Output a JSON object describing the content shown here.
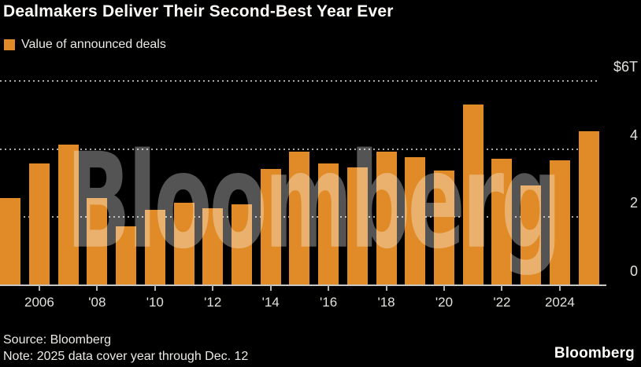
{
  "header": {
    "title": "Dealmakers Deliver Their Second-Best Year Ever"
  },
  "legend": {
    "label": "Value of announced deals",
    "swatch_color": "#e08b28",
    "swatch_icon": "square-swatch-icon"
  },
  "chart_data": {
    "type": "bar",
    "title": "Dealmakers Deliver Their Second-Best Year Ever",
    "series_label": "Value of announced deals",
    "unit": "trillions of US dollars",
    "categories": [
      2005,
      2006,
      2007,
      2008,
      2009,
      2010,
      2011,
      2012,
      2013,
      2014,
      2015,
      2016,
      2017,
      2018,
      2019,
      2020,
      2021,
      2022,
      2023,
      2024,
      2025
    ],
    "values": [
      2.55,
      3.55,
      4.1,
      2.55,
      1.7,
      2.2,
      2.4,
      2.25,
      2.35,
      3.4,
      3.9,
      3.55,
      3.45,
      3.9,
      3.75,
      3.35,
      5.3,
      3.7,
      2.9,
      3.65,
      4.5
    ],
    "ylim": [
      0,
      6
    ],
    "y_ticks": [
      {
        "value": 6,
        "label": "$6T"
      },
      {
        "value": 4,
        "label": "4"
      },
      {
        "value": 2,
        "label": "2"
      },
      {
        "value": 0,
        "label": "0"
      }
    ],
    "x_tick_labels": [
      {
        "year": 2006,
        "label": "2006"
      },
      {
        "year": 2008,
        "label": "'08"
      },
      {
        "year": 2010,
        "label": "'10"
      },
      {
        "year": 2012,
        "label": "'12"
      },
      {
        "year": 2014,
        "label": "'14"
      },
      {
        "year": 2016,
        "label": "'16"
      },
      {
        "year": 2018,
        "label": "'18"
      },
      {
        "year": 2020,
        "label": "'20"
      },
      {
        "year": 2022,
        "label": "'22"
      },
      {
        "year": 2024,
        "label": "2024"
      }
    ],
    "grid": "horizontal dotted",
    "legend_position": "top-left",
    "bar_color": "#e08b28",
    "background_color": "#000000"
  },
  "watermark": {
    "text": "Bloomberg"
  },
  "footer": {
    "source": "Source: Bloomberg",
    "note": "Note: 2025 data cover year through Dec. 12",
    "logo": "Bloomberg"
  }
}
